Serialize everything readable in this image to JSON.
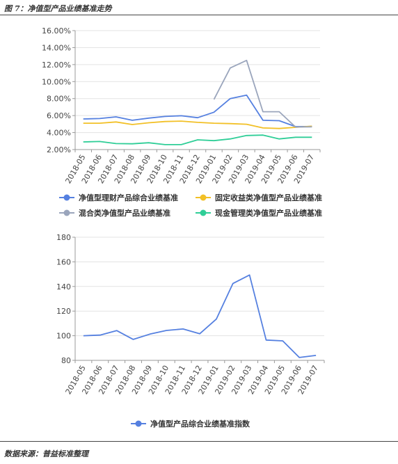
{
  "figure_title": "图 7：净值型产品业绩基准走势",
  "source": "数据来源：普益标准整理",
  "colors": {
    "net_value_composite": "#5580e0",
    "fixed_income": "#f2c026",
    "mixed": "#9aa5bc",
    "cash_mgmt": "#2fce97",
    "axis": "#999999",
    "grid": "#e3e3e3"
  },
  "chart_data": [
    {
      "type": "line",
      "categories": [
        "2018-05",
        "2018-06",
        "2018-07",
        "2018-08",
        "2018-09",
        "2018-10",
        "2018-11",
        "2018-12",
        "2019-01",
        "2019-02",
        "2019-03",
        "2019-04",
        "2019-05",
        "2019-06",
        "2019-07"
      ],
      "y_ticks": [
        "2.00%",
        "4.00%",
        "6.00%",
        "8.00%",
        "10.00%",
        "12.00%",
        "14.00%",
        "16.00%"
      ],
      "ylim": [
        2,
        16
      ],
      "grid": true,
      "legend_position": "bottom",
      "series": [
        {
          "name": "净值型理财产品综合业绩基准",
          "color": "#5580e0",
          "values": [
            5.6,
            5.65,
            5.85,
            5.45,
            5.7,
            5.9,
            5.98,
            5.75,
            6.4,
            8.0,
            8.4,
            5.45,
            5.4,
            4.7,
            4.72
          ]
        },
        {
          "name": "固定收益类净值型产品业绩基准",
          "color": "#f2c026",
          "values": [
            5.1,
            5.1,
            5.25,
            4.95,
            5.15,
            5.3,
            5.35,
            5.2,
            5.1,
            5.05,
            4.98,
            4.55,
            4.48,
            4.62,
            4.75
          ]
        },
        {
          "name": "混合类净值型产品业绩基准",
          "color": "#9aa5bc",
          "values": [
            null,
            null,
            null,
            null,
            null,
            null,
            null,
            null,
            7.9,
            11.6,
            12.5,
            6.45,
            6.45,
            4.65,
            4.68
          ]
        },
        {
          "name": "现金管理类净值型产品业绩基准",
          "color": "#2fce97",
          "values": [
            2.9,
            2.95,
            2.7,
            2.68,
            2.8,
            2.58,
            2.58,
            3.15,
            3.05,
            3.25,
            3.65,
            3.7,
            3.25,
            3.45,
            3.45
          ]
        }
      ]
    },
    {
      "type": "line",
      "categories": [
        "2018-05",
        "2018-06",
        "2018-07",
        "2018-08",
        "2018-09",
        "2018-10",
        "2018-11",
        "2018-12",
        "2019-01",
        "2019-02",
        "2019-03",
        "2019-04",
        "2019-05",
        "2019-06",
        "2019-07"
      ],
      "y_ticks": [
        "80",
        "100",
        "120",
        "140",
        "160",
        "180"
      ],
      "ylim": [
        80,
        180
      ],
      "grid": true,
      "legend_position": "bottom",
      "series": [
        {
          "name": "净值型产品综合业绩基准指数",
          "color": "#5580e0",
          "values": [
            100,
            100.5,
            104.2,
            97,
            101.3,
            104.3,
            105.5,
            101.6,
            113.5,
            142.4,
            149.3,
            96.5,
            95.8,
            82.3,
            84
          ]
        }
      ]
    }
  ]
}
